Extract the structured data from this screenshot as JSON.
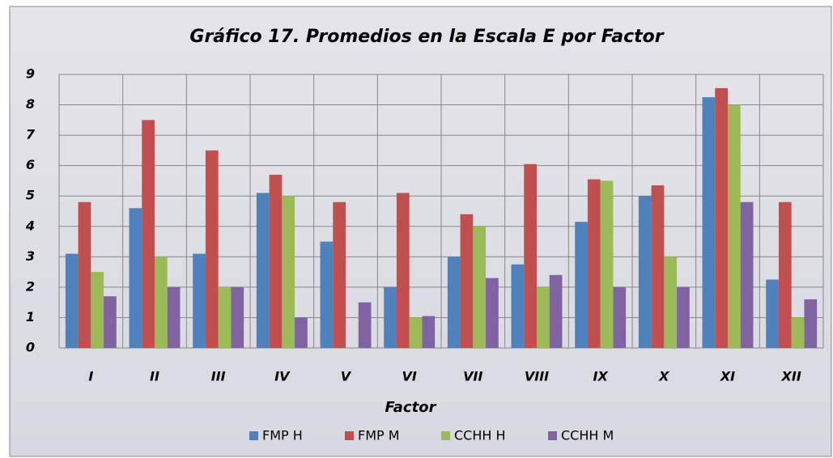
{
  "chart_data": {
    "type": "bar",
    "title": "Gráfico 17. Promedios en la Escala E por Factor",
    "x_label": "Factor",
    "categories": [
      "I",
      "II",
      "III",
      "IV",
      "V",
      "VI",
      "VII",
      "VIII",
      "IX",
      "X",
      "XI",
      "XII"
    ],
    "series": [
      {
        "name": "FMP H",
        "color": "#4f81bd",
        "values": [
          3.1,
          4.6,
          3.1,
          5.1,
          3.5,
          2,
          3,
          2.75,
          4.15,
          5,
          8.25,
          2.25
        ]
      },
      {
        "name": "FMP M",
        "color": "#c0504d",
        "values": [
          4.8,
          7.5,
          6.5,
          5.7,
          4.8,
          5.1,
          4.4,
          6.05,
          5.55,
          5.35,
          8.55,
          4.8
        ]
      },
      {
        "name": "CCHH H",
        "color": "#9bbb59",
        "values": [
          2.5,
          3,
          2,
          5,
          0,
          1,
          4,
          2,
          5.5,
          3,
          8,
          1
        ]
      },
      {
        "name": "CCHH M",
        "color": "#8064a2",
        "values": [
          1.7,
          2,
          2,
          1,
          1.5,
          1.05,
          2.3,
          2.4,
          2,
          2,
          4.8,
          1.6
        ]
      }
    ],
    "ylim": [
      0,
      9
    ],
    "yticks": [
      0,
      1,
      2,
      3,
      4,
      5,
      6,
      7,
      8,
      9
    ],
    "grid": true,
    "legend": "bottom"
  }
}
